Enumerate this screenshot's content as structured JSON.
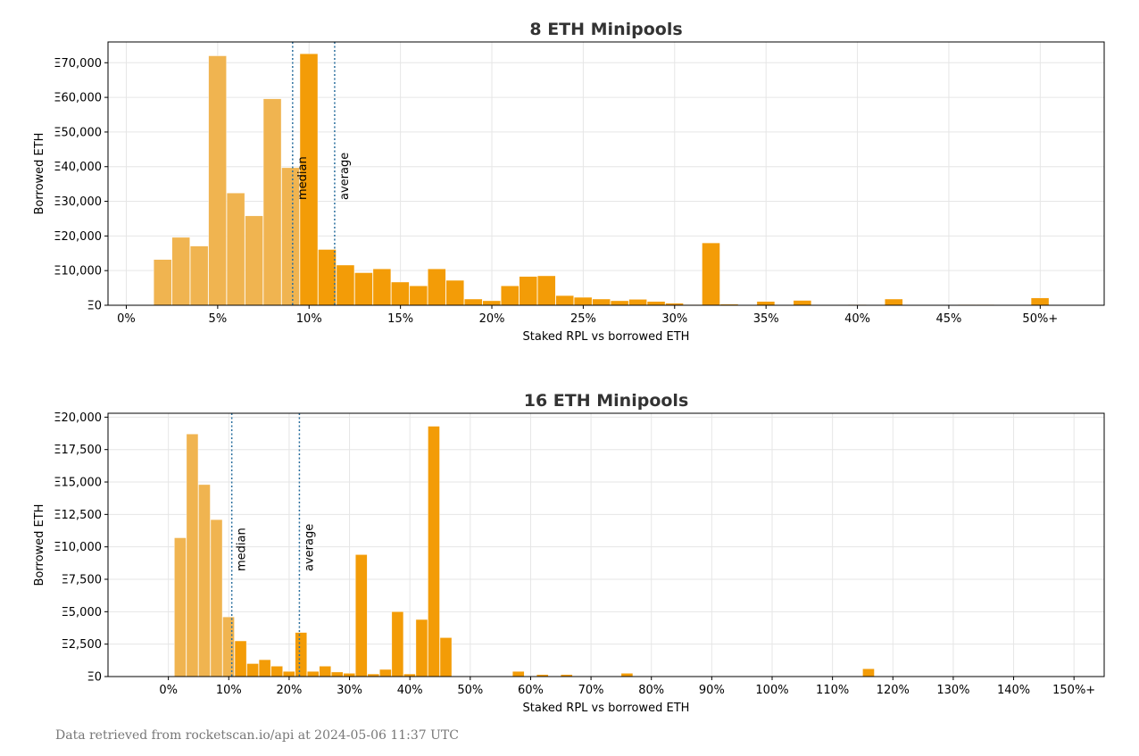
{
  "colors": {
    "below_median": "#f0b450",
    "above_median": "#f39c07",
    "median_line": "#2a6f9e",
    "grid": "#e6e6e6"
  },
  "footer": "Data retrieved from rocketscan.io/api at 2024-05-06 11:37 UTC",
  "chart_data": [
    {
      "type": "bar",
      "title": "8 ETH Minipools",
      "xlabel": "Staked RPL vs borrowed ETH",
      "ylabel": "Borrowed ETH",
      "grid": true,
      "xlim": [
        -1,
        53.5
      ],
      "ylim": [
        0,
        76000
      ],
      "bin_width": 1,
      "xticks": [
        0,
        5,
        10,
        15,
        20,
        25,
        30,
        35,
        40,
        45,
        50
      ],
      "xtick_labels": [
        "0%",
        "5%",
        "10%",
        "15%",
        "20%",
        "25%",
        "30%",
        "35%",
        "40%",
        "45%",
        "50%+"
      ],
      "yticks": [
        0,
        10000,
        20000,
        30000,
        40000,
        50000,
        60000,
        70000
      ],
      "ytick_labels": [
        "Ξ0",
        "Ξ10,000",
        "Ξ20,000",
        "Ξ30,000",
        "Ξ40,000",
        "Ξ50,000",
        "Ξ60,000",
        "Ξ70,000"
      ],
      "bins_start": [
        1.5,
        2.5,
        3.5,
        4.5,
        5.5,
        6.5,
        7.5,
        8.5,
        9.5,
        10.5,
        11.5,
        12.5,
        13.5,
        14.5,
        15.5,
        16.5,
        17.5,
        18.5,
        19.5,
        20.5,
        21.5,
        22.5,
        23.5,
        24.5,
        25.5,
        26.5,
        27.5,
        28.5,
        29.5,
        30.5,
        31.5,
        32.5,
        34.5,
        36.5,
        39.5,
        41.5,
        45.5,
        46.5,
        49.5
      ],
      "values": [
        13200,
        19600,
        17100,
        72000,
        32400,
        25800,
        59600,
        39700,
        72600,
        16100,
        11600,
        9400,
        10500,
        6700,
        5600,
        10500,
        7200,
        1800,
        1300,
        5600,
        8300,
        8500,
        2800,
        2300,
        1800,
        1300,
        1700,
        1100,
        600,
        200,
        18000,
        300,
        1100,
        1400,
        200,
        1800,
        200,
        200,
        2100
      ],
      "median": 9.1,
      "average": 11.4,
      "median_label": "median",
      "average_label": "average"
    },
    {
      "type": "bar",
      "title": "16 ETH Minipools",
      "xlabel": "Staked RPL vs borrowed ETH",
      "ylabel": "Borrowed ETH",
      "grid": true,
      "xlim": [
        -10,
        155
      ],
      "ylim": [
        0,
        20300
      ],
      "bin_width": 2,
      "xticks": [
        0,
        10,
        20,
        30,
        40,
        50,
        60,
        70,
        80,
        90,
        100,
        110,
        120,
        130,
        140,
        150
      ],
      "xtick_labels": [
        "0%",
        "10%",
        "20%",
        "30%",
        "40%",
        "50%",
        "60%",
        "70%",
        "80%",
        "90%",
        "100%",
        "110%",
        "120%",
        "130%",
        "140%",
        "150%+"
      ],
      "yticks": [
        0,
        2500,
        5000,
        7500,
        10000,
        12500,
        15000,
        17500,
        20000
      ],
      "ytick_labels": [
        "Ξ0",
        "Ξ2,500",
        "Ξ5,000",
        "Ξ7,500",
        "Ξ10,000",
        "Ξ12,500",
        "Ξ15,000",
        "Ξ17,500",
        "Ξ20,000"
      ],
      "bins_start": [
        1,
        3,
        5,
        7,
        9,
        11,
        13,
        15,
        17,
        19,
        21,
        23,
        25,
        27,
        29,
        31,
        33,
        35,
        37,
        39,
        41,
        43,
        45,
        57,
        61,
        65,
        75,
        115
      ],
      "values": [
        10700,
        18700,
        14800,
        12100,
        4600,
        2750,
        1000,
        1300,
        800,
        400,
        3400,
        400,
        800,
        350,
        250,
        9400,
        200,
        550,
        5000,
        200,
        4400,
        19300,
        3000,
        400,
        150,
        150,
        250,
        600
      ],
      "median": 10.5,
      "average": 21.7,
      "median_label": "median",
      "average_label": "average"
    }
  ]
}
